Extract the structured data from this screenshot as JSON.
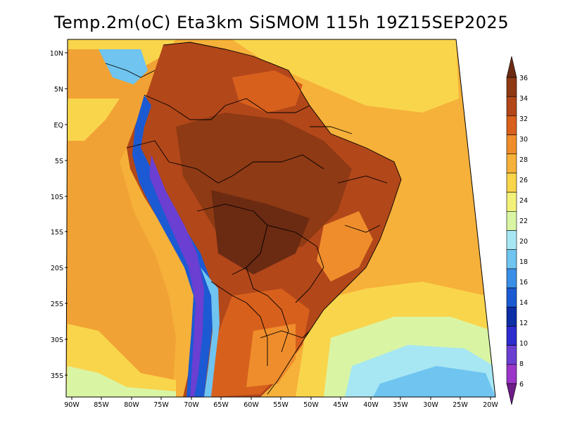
{
  "title": "Temp.2m(oC) Eta3km SiSMOM 115h 19Z15SEP2025",
  "lat_labels": [
    "10N",
    "5N",
    "EQ",
    "5S",
    "10S",
    "15S",
    "20S",
    "25S",
    "30S",
    "35S"
  ],
  "lon_labels": [
    "90W",
    "85W",
    "80W",
    "75W",
    "70W",
    "65W",
    "60W",
    "55W",
    "50W",
    "45W",
    "40W",
    "35W",
    "30W",
    "25W",
    "20W"
  ],
  "colorbar": {
    "labels": [
      "36",
      "34",
      "32",
      "30",
      "28",
      "26",
      "24",
      "22",
      "20",
      "18",
      "16",
      "14",
      "12",
      "10",
      "8",
      "6"
    ],
    "colors": [
      "#6b2a12",
      "#8e3a14",
      "#b2471a",
      "#d8601d",
      "#ef8d2c",
      "#f6b13a",
      "#f9d54c",
      "#f4f17a",
      "#d9f5a4",
      "#a7e7f3",
      "#6fc4f0",
      "#3a8ee6",
      "#1b5ad2",
      "#0c2ea6",
      "#2c2ccf",
      "#6a3fd2",
      "#9b36c8",
      "#6d1b86"
    ]
  },
  "colors": {
    "ocean_warm": "#f6b13a",
    "ocean_mid": "#f9d54c",
    "ocean_cool": "#a7e7f3",
    "land_hot": "#b2471a",
    "land_hotter": "#8e3a14",
    "andes_cold": "#1b5ad2"
  }
}
